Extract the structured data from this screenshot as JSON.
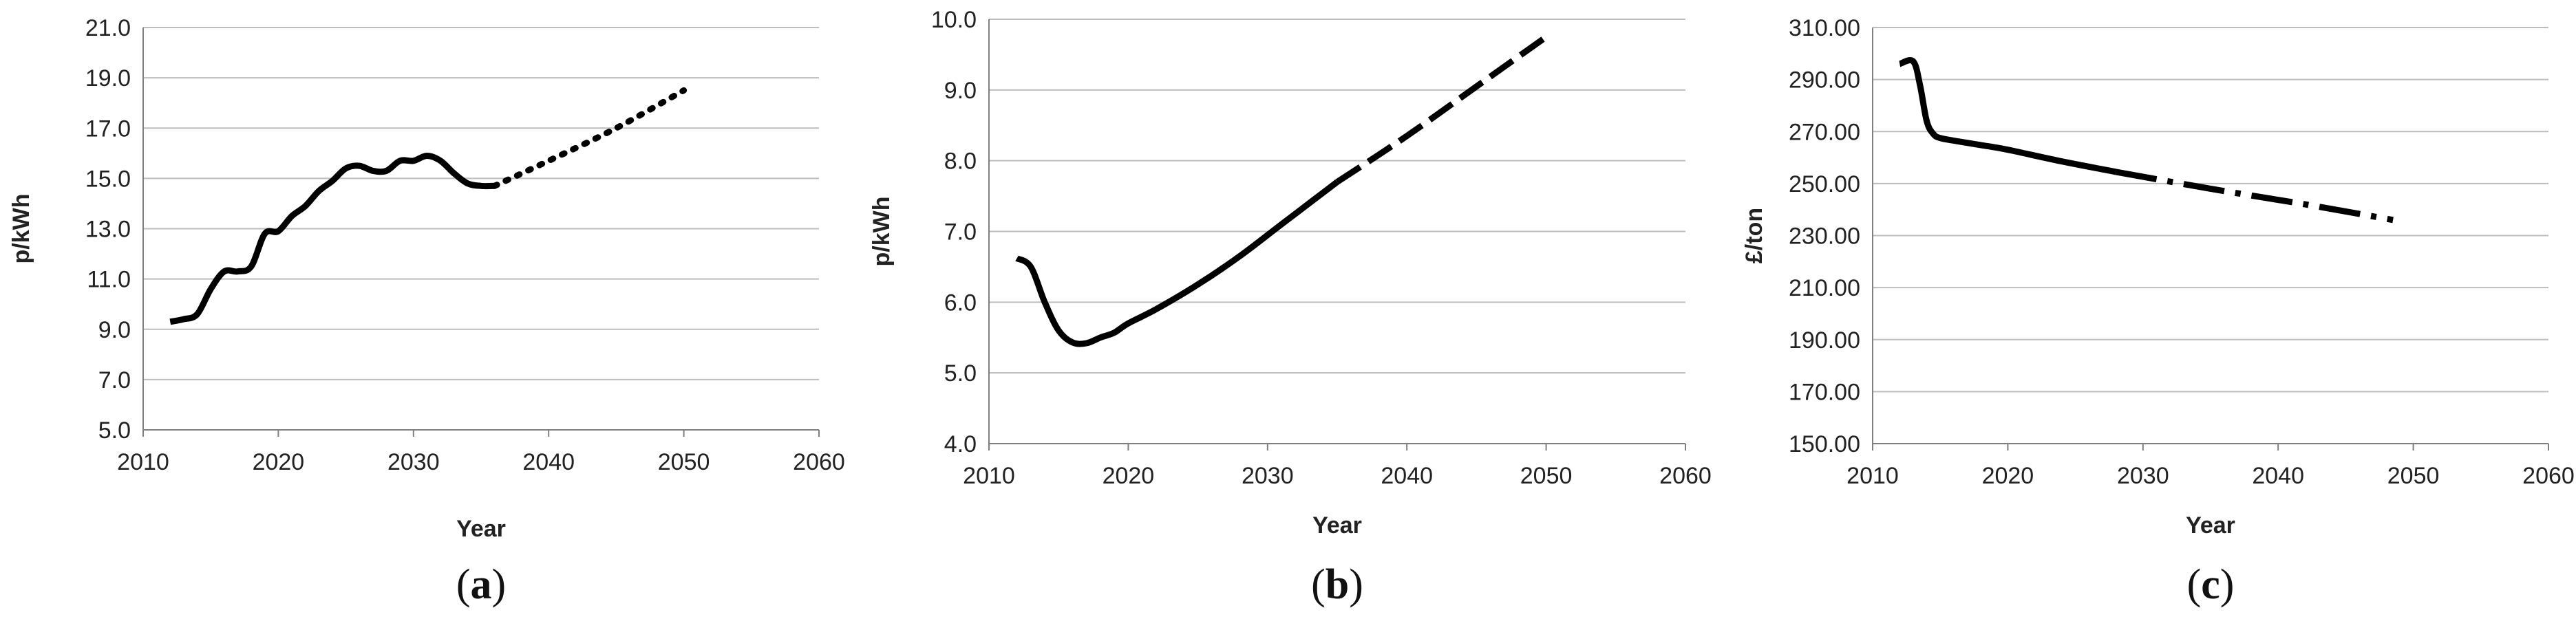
{
  "chart_data": [
    {
      "type": "line",
      "panel_label": "a",
      "xlabel": "Year",
      "ylabel": "p/kWh",
      "xlim": [
        2010,
        2060
      ],
      "ylim": [
        5.0,
        21.0
      ],
      "x_ticks": [
        2010,
        2020,
        2030,
        2040,
        2050,
        2060
      ],
      "y_ticks": [
        "5.0",
        "7.0",
        "9.0",
        "11.0",
        "13.0",
        "15.0",
        "17.0",
        "19.0",
        "21.0"
      ],
      "grid": "horizontal",
      "series": [
        {
          "style": "solid",
          "x": [
            2012,
            2013,
            2014,
            2015,
            2016,
            2017,
            2018,
            2019,
            2020,
            2021,
            2022,
            2023,
            2024,
            2025,
            2026,
            2027,
            2028,
            2029,
            2030,
            2031,
            2032,
            2033,
            2034,
            2035,
            2036
          ],
          "y": [
            9.3,
            9.4,
            9.6,
            10.6,
            11.3,
            11.3,
            11.5,
            12.8,
            12.9,
            13.5,
            13.9,
            14.5,
            14.9,
            15.4,
            15.5,
            15.3,
            15.3,
            15.7,
            15.7,
            15.9,
            15.7,
            15.2,
            14.8,
            14.7,
            14.7
          ]
        },
        {
          "style": "dotted",
          "x": [
            2036,
            2040,
            2045,
            2050
          ],
          "y": [
            14.7,
            15.7,
            17.0,
            18.5
          ]
        }
      ]
    },
    {
      "type": "line",
      "panel_label": "b",
      "xlabel": "Year",
      "ylabel": "p/kWh",
      "xlim": [
        2010,
        2060
      ],
      "ylim": [
        4.0,
        10.0
      ],
      "x_ticks": [
        2010,
        2020,
        2030,
        2040,
        2050,
        2060
      ],
      "y_ticks": [
        "4.0",
        "5.0",
        "6.0",
        "7.0",
        "8.0",
        "9.0",
        "10.0"
      ],
      "grid": "horizontal",
      "series": [
        {
          "style": "solid",
          "x": [
            2012,
            2013,
            2014,
            2015,
            2016,
            2017,
            2018,
            2019,
            2020,
            2022,
            2025,
            2028,
            2031,
            2034,
            2035
          ],
          "y": [
            6.62,
            6.5,
            6.0,
            5.6,
            5.43,
            5.42,
            5.5,
            5.57,
            5.7,
            5.9,
            6.25,
            6.65,
            7.1,
            7.55,
            7.7
          ]
        },
        {
          "style": "dashed",
          "x": [
            2035,
            2040,
            2045,
            2050
          ],
          "y": [
            7.7,
            8.35,
            9.05,
            9.75
          ]
        }
      ]
    },
    {
      "type": "line",
      "panel_label": "c",
      "xlabel": "Year",
      "ylabel": "£/ton",
      "xlim": [
        2010,
        2060
      ],
      "ylim": [
        150.0,
        310.0
      ],
      "x_ticks": [
        2010,
        2020,
        2030,
        2040,
        2050,
        2060
      ],
      "y_ticks": [
        "150.00",
        "170.00",
        "190.00",
        "210.00",
        "230.00",
        "250.00",
        "270.00",
        "290.00",
        "310.00"
      ],
      "grid": "horizontal",
      "series": [
        {
          "style": "solid",
          "x": [
            2012,
            2013,
            2013.5,
            2014,
            2014.5,
            2015,
            2016,
            2018,
            2020,
            2024,
            2028
          ],
          "y": [
            296,
            297,
            288,
            274,
            269,
            267.5,
            266.5,
            264.8,
            263,
            258.5,
            254.5
          ]
        },
        {
          "style": "dash-dot",
          "x": [
            2028,
            2035,
            2042,
            2048.5
          ],
          "y": [
            254.5,
            248,
            242,
            236
          ]
        }
      ]
    }
  ]
}
